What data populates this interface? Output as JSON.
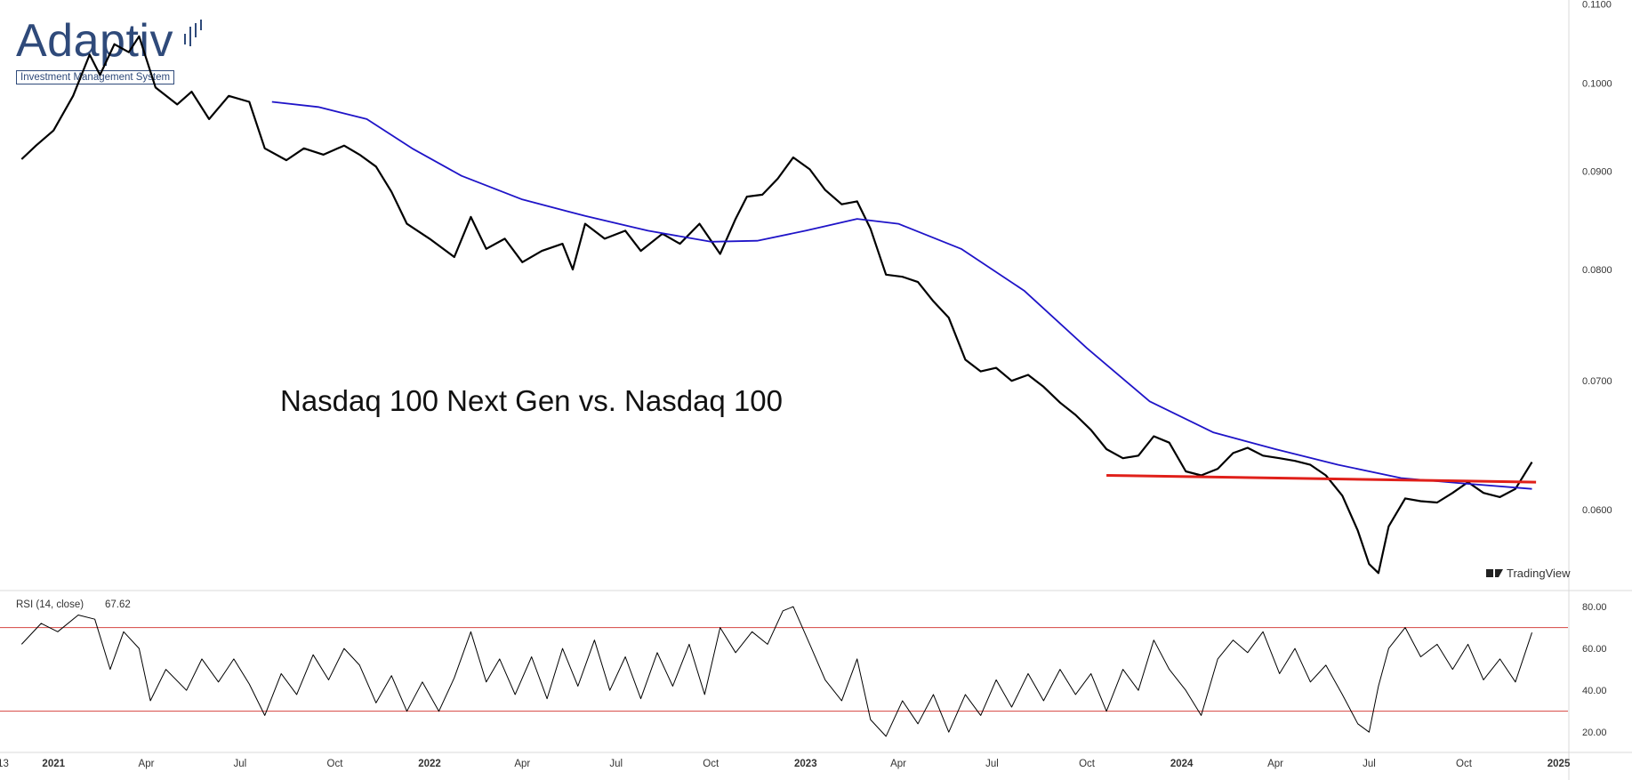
{
  "branding": {
    "wordmark": "Adaptiv",
    "tagline": "Investment Management System",
    "watermark": "TradingView",
    "colors": {
      "brand": "#2f4a7a"
    }
  },
  "chart_data": [
    {
      "type": "line",
      "title": "Nasdaq 100 Next Gen vs. Nasdaq 100",
      "xlabel": "",
      "ylabel": "",
      "x_ticks": [
        "13",
        "2021",
        "Apr",
        "Jul",
        "Oct",
        "2022",
        "Apr",
        "Jul",
        "Oct",
        "2023",
        "Apr",
        "Jul",
        "Oct",
        "2024",
        "Apr",
        "Jul",
        "Oct",
        "2025"
      ],
      "bold_x_ticks": [
        "2021",
        "2022",
        "2023",
        "2024",
        "2025"
      ],
      "y_ticks": [
        "0.1100",
        "0.1000",
        "0.0900",
        "0.0800",
        "0.0700",
        "0.0600"
      ],
      "y_tick_values": [
        0.11,
        0.1,
        0.09,
        0.08,
        0.07,
        0.06
      ],
      "ylim": [
        0.0545,
        0.1105
      ],
      "x_range": [
        "2020-11-10",
        "2025-01-10"
      ],
      "scale": "log",
      "grid": false,
      "series": [
        {
          "color": "#000000",
          "points": [
            [
              "2020-12-01",
              0.0913
            ],
            [
              "2020-12-15",
              0.0928
            ],
            [
              "2021-01-01",
              0.0945
            ],
            [
              "2021-01-20",
              0.0985
            ],
            [
              "2021-02-05",
              0.1035
            ],
            [
              "2021-02-15",
              0.101
            ],
            [
              "2021-03-01",
              0.1048
            ],
            [
              "2021-03-15",
              0.1038
            ],
            [
              "2021-03-25",
              0.1058
            ],
            [
              "2021-04-10",
              0.0995
            ],
            [
              "2021-05-01",
              0.0975
            ],
            [
              "2021-05-15",
              0.099
            ],
            [
              "2021-06-01",
              0.0958
            ],
            [
              "2021-06-20",
              0.0985
            ],
            [
              "2021-07-10",
              0.0978
            ],
            [
              "2021-07-25",
              0.0925
            ],
            [
              "2021-08-15",
              0.0912
            ],
            [
              "2021-09-01",
              0.0925
            ],
            [
              "2021-09-20",
              0.0918
            ],
            [
              "2021-10-10",
              0.0928
            ],
            [
              "2021-10-25",
              0.0918
            ],
            [
              "2021-11-10",
              0.0905
            ],
            [
              "2021-11-25",
              0.0878
            ],
            [
              "2021-12-10",
              0.0845
            ],
            [
              "2022-01-01",
              0.083
            ],
            [
              "2022-01-25",
              0.0812
            ],
            [
              "2022-02-10",
              0.0852
            ],
            [
              "2022-02-25",
              0.082
            ],
            [
              "2022-03-15",
              0.083
            ],
            [
              "2022-04-01",
              0.0807
            ],
            [
              "2022-04-20",
              0.0818
            ],
            [
              "2022-05-10",
              0.0825
            ],
            [
              "2022-05-20",
              0.08
            ],
            [
              "2022-06-01",
              0.0845
            ],
            [
              "2022-06-20",
              0.083
            ],
            [
              "2022-07-10",
              0.0838
            ],
            [
              "2022-07-25",
              0.0818
            ],
            [
              "2022-08-15",
              0.0835
            ],
            [
              "2022-09-01",
              0.0825
            ],
            [
              "2022-09-20",
              0.0845
            ],
            [
              "2022-10-10",
              0.0815
            ],
            [
              "2022-10-25",
              0.085
            ],
            [
              "2022-11-05",
              0.0873
            ],
            [
              "2022-11-20",
              0.0875
            ],
            [
              "2022-12-05",
              0.0892
            ],
            [
              "2022-12-20",
              0.0915
            ],
            [
              "2023-01-05",
              0.0902
            ],
            [
              "2023-01-20",
              0.088
            ],
            [
              "2023-02-05",
              0.0865
            ],
            [
              "2023-02-20",
              0.0868
            ],
            [
              "2023-03-05",
              0.084
            ],
            [
              "2023-03-20",
              0.0795
            ],
            [
              "2023-04-05",
              0.0793
            ],
            [
              "2023-04-20",
              0.0788
            ],
            [
              "2023-05-05",
              0.077
            ],
            [
              "2023-05-20",
              0.0755
            ],
            [
              "2023-06-05",
              0.0718
            ],
            [
              "2023-06-20",
              0.0708
            ],
            [
              "2023-07-05",
              0.0711
            ],
            [
              "2023-07-20",
              0.07
            ],
            [
              "2023-08-05",
              0.0705
            ],
            [
              "2023-08-20",
              0.0695
            ],
            [
              "2023-09-05",
              0.0682
            ],
            [
              "2023-09-20",
              0.0672
            ],
            [
              "2023-10-05",
              0.066
            ],
            [
              "2023-10-20",
              0.0645
            ],
            [
              "2023-11-05",
              0.0638
            ],
            [
              "2023-11-20",
              0.064
            ],
            [
              "2023-12-05",
              0.0655
            ],
            [
              "2023-12-20",
              0.065
            ],
            [
              "2024-01-05",
              0.0628
            ],
            [
              "2024-01-20",
              0.0625
            ],
            [
              "2024-02-05",
              0.063
            ],
            [
              "2024-02-20",
              0.0642
            ],
            [
              "2024-03-05",
              0.0646
            ],
            [
              "2024-03-20",
              0.064
            ],
            [
              "2024-04-05",
              0.0638
            ],
            [
              "2024-04-20",
              0.0636
            ],
            [
              "2024-05-05",
              0.0633
            ],
            [
              "2024-05-20",
              0.0625
            ],
            [
              "2024-06-05",
              0.061
            ],
            [
              "2024-06-20",
              0.0585
            ],
            [
              "2024-07-01",
              0.0562
            ],
            [
              "2024-07-10",
              0.0556
            ],
            [
              "2024-07-20",
              0.0588
            ],
            [
              "2024-08-05",
              0.0608
            ],
            [
              "2024-08-20",
              0.0606
            ],
            [
              "2024-09-05",
              0.0605
            ],
            [
              "2024-09-20",
              0.0612
            ],
            [
              "2024-10-05",
              0.062
            ],
            [
              "2024-10-20",
              0.0612
            ],
            [
              "2024-11-05",
              0.0609
            ],
            [
              "2024-11-20",
              0.0615
            ],
            [
              "2024-12-06",
              0.0635
            ]
          ]
        },
        {
          "color": "#1f14c8",
          "points": [
            [
              "2021-08-01",
              0.0978
            ],
            [
              "2021-09-15",
              0.0972
            ],
            [
              "2021-11-01",
              0.0958
            ],
            [
              "2021-12-15",
              0.0925
            ],
            [
              "2022-02-01",
              0.0895
            ],
            [
              "2022-04-01",
              0.087
            ],
            [
              "2022-06-01",
              0.0853
            ],
            [
              "2022-08-01",
              0.0838
            ],
            [
              "2022-10-01",
              0.0827
            ],
            [
              "2022-11-15",
              0.0828
            ],
            [
              "2023-01-01",
              0.0838
            ],
            [
              "2023-02-20",
              0.085
            ],
            [
              "2023-04-01",
              0.0845
            ],
            [
              "2023-06-01",
              0.082
            ],
            [
              "2023-08-01",
              0.078
            ],
            [
              "2023-10-01",
              0.0728
            ],
            [
              "2023-12-01",
              0.0683
            ],
            [
              "2024-02-01",
              0.0658
            ],
            [
              "2024-04-01",
              0.0645
            ],
            [
              "2024-06-01",
              0.0633
            ],
            [
              "2024-08-01",
              0.0623
            ],
            [
              "2024-10-01",
              0.0619
            ],
            [
              "2024-12-06",
              0.0615
            ]
          ]
        },
        {
          "color": "#e0201a",
          "points": [
            [
              "2023-10-20",
              0.0625
            ],
            [
              "2024-12-10",
              0.062
            ]
          ]
        }
      ]
    },
    {
      "type": "line",
      "title": "RSI (14, close)",
      "last_value": "67.62",
      "ylim": [
        12,
        86
      ],
      "y_ticks": [
        "80.00",
        "60.00",
        "40.00",
        "20.00"
      ],
      "y_tick_values": [
        80,
        60,
        40,
        20
      ],
      "reference_lines": [
        70,
        30
      ],
      "reference_color": "#d64541",
      "x_range": [
        "2020-11-10",
        "2025-01-10"
      ],
      "series": [
        {
          "color": "#000000",
          "points": [
            [
              "2020-12-01",
              62
            ],
            [
              "2020-12-20",
              72
            ],
            [
              "2021-01-05",
              68
            ],
            [
              "2021-01-25",
              76
            ],
            [
              "2021-02-10",
              74
            ],
            [
              "2021-02-25",
              50
            ],
            [
              "2021-03-10",
              68
            ],
            [
              "2021-03-25",
              60
            ],
            [
              "2021-04-05",
              35
            ],
            [
              "2021-04-20",
              50
            ],
            [
              "2021-05-10",
              40
            ],
            [
              "2021-05-25",
              55
            ],
            [
              "2021-06-10",
              44
            ],
            [
              "2021-06-25",
              55
            ],
            [
              "2021-07-10",
              43
            ],
            [
              "2021-07-25",
              28
            ],
            [
              "2021-08-10",
              48
            ],
            [
              "2021-08-25",
              38
            ],
            [
              "2021-09-10",
              57
            ],
            [
              "2021-09-25",
              45
            ],
            [
              "2021-10-10",
              60
            ],
            [
              "2021-10-25",
              52
            ],
            [
              "2021-11-10",
              34
            ],
            [
              "2021-11-25",
              47
            ],
            [
              "2021-12-10",
              30
            ],
            [
              "2021-12-25",
              44
            ],
            [
              "2022-01-10",
              30
            ],
            [
              "2022-01-25",
              46
            ],
            [
              "2022-02-10",
              68
            ],
            [
              "2022-02-25",
              44
            ],
            [
              "2022-03-10",
              55
            ],
            [
              "2022-03-25",
              38
            ],
            [
              "2022-04-10",
              56
            ],
            [
              "2022-04-25",
              36
            ],
            [
              "2022-05-10",
              60
            ],
            [
              "2022-05-25",
              42
            ],
            [
              "2022-06-10",
              64
            ],
            [
              "2022-06-25",
              40
            ],
            [
              "2022-07-10",
              56
            ],
            [
              "2022-07-25",
              36
            ],
            [
              "2022-08-10",
              58
            ],
            [
              "2022-08-25",
              42
            ],
            [
              "2022-09-10",
              62
            ],
            [
              "2022-09-25",
              38
            ],
            [
              "2022-10-10",
              70
            ],
            [
              "2022-10-25",
              58
            ],
            [
              "2022-11-10",
              68
            ],
            [
              "2022-11-25",
              62
            ],
            [
              "2022-12-10",
              78
            ],
            [
              "2022-12-20",
              80
            ],
            [
              "2023-01-05",
              62
            ],
            [
              "2023-01-20",
              45
            ],
            [
              "2023-02-05",
              35
            ],
            [
              "2023-02-20",
              55
            ],
            [
              "2023-03-05",
              26
            ],
            [
              "2023-03-20",
              18
            ],
            [
              "2023-04-05",
              35
            ],
            [
              "2023-04-20",
              24
            ],
            [
              "2023-05-05",
              38
            ],
            [
              "2023-05-20",
              20
            ],
            [
              "2023-06-05",
              38
            ],
            [
              "2023-06-20",
              28
            ],
            [
              "2023-07-05",
              45
            ],
            [
              "2023-07-20",
              32
            ],
            [
              "2023-08-05",
              48
            ],
            [
              "2023-08-20",
              35
            ],
            [
              "2023-09-05",
              50
            ],
            [
              "2023-09-20",
              38
            ],
            [
              "2023-10-05",
              48
            ],
            [
              "2023-10-20",
              30
            ],
            [
              "2023-11-05",
              50
            ],
            [
              "2023-11-20",
              40
            ],
            [
              "2023-12-05",
              64
            ],
            [
              "2023-12-20",
              50
            ],
            [
              "2024-01-05",
              40
            ],
            [
              "2024-01-20",
              28
            ],
            [
              "2024-02-05",
              55
            ],
            [
              "2024-02-20",
              64
            ],
            [
              "2024-03-05",
              58
            ],
            [
              "2024-03-20",
              68
            ],
            [
              "2024-04-05",
              48
            ],
            [
              "2024-04-20",
              60
            ],
            [
              "2024-05-05",
              44
            ],
            [
              "2024-05-20",
              52
            ],
            [
              "2024-06-05",
              38
            ],
            [
              "2024-06-20",
              24
            ],
            [
              "2024-07-01",
              20
            ],
            [
              "2024-07-10",
              42
            ],
            [
              "2024-07-20",
              60
            ],
            [
              "2024-08-05",
              70
            ],
            [
              "2024-08-20",
              56
            ],
            [
              "2024-09-05",
              62
            ],
            [
              "2024-09-20",
              50
            ],
            [
              "2024-10-05",
              62
            ],
            [
              "2024-10-20",
              45
            ],
            [
              "2024-11-05",
              55
            ],
            [
              "2024-11-20",
              44
            ],
            [
              "2024-12-06",
              67.62
            ]
          ]
        }
      ]
    }
  ]
}
